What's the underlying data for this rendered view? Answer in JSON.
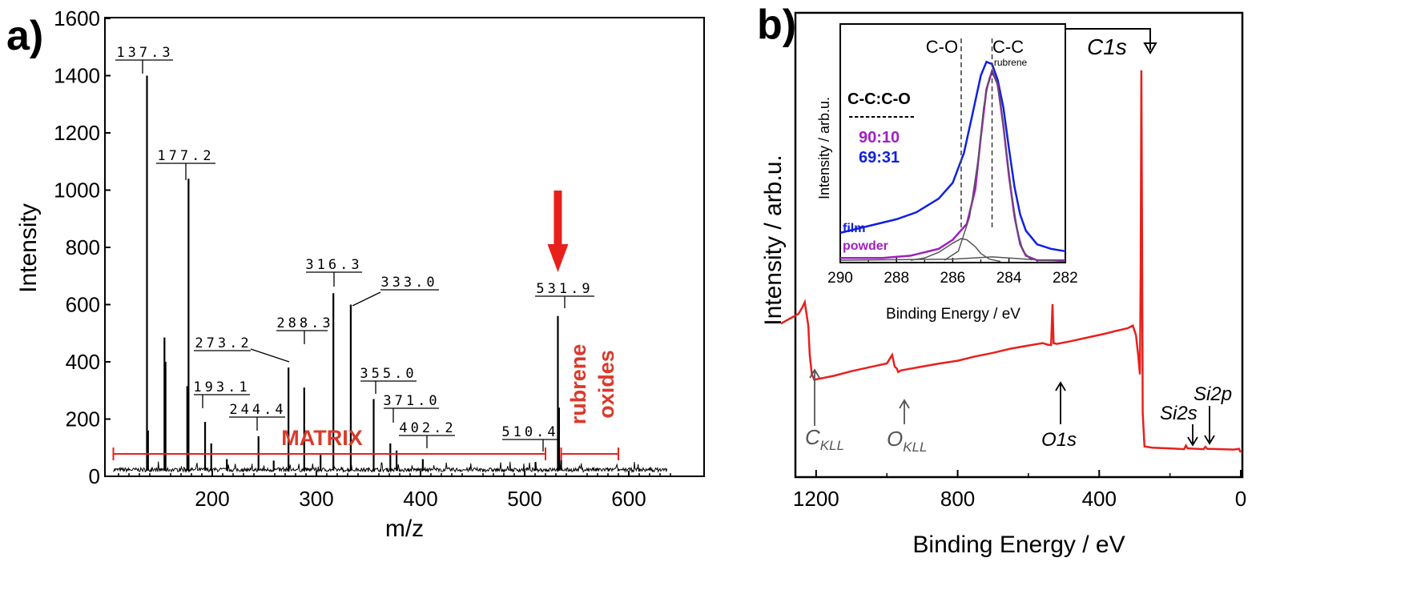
{
  "colors": {
    "axis": "#000000",
    "red": "#e8201c",
    "blue": "#1020e0",
    "purple": "#a020c0",
    "gray": "#555555",
    "annot_gray": "#555555",
    "matrix_red": "#d93a2b"
  },
  "panel_a": {
    "panel_label": "a)",
    "chart_data": {
      "type": "line",
      "title": "",
      "xlabel": "m/z",
      "ylabel": "Intensity",
      "xlim": [
        100,
        655
      ],
      "ylim": [
        0,
        1600
      ],
      "xticks": [
        200,
        300,
        400,
        500,
        600
      ],
      "yticks": [
        0,
        200,
        400,
        600,
        800,
        1000,
        1200,
        1400,
        1600
      ],
      "baseline": 20,
      "peaks": [
        {
          "x": 137.3,
          "y": 1400
        },
        {
          "x": 138.3,
          "y": 160
        },
        {
          "x": 154.1,
          "y": 485
        },
        {
          "x": 155.1,
          "y": 400
        },
        {
          "x": 176.0,
          "y": 315
        },
        {
          "x": 177.2,
          "y": 1040
        },
        {
          "x": 193.1,
          "y": 190
        },
        {
          "x": 199.0,
          "y": 115
        },
        {
          "x": 214.0,
          "y": 60
        },
        {
          "x": 244.4,
          "y": 140
        },
        {
          "x": 259.0,
          "y": 55
        },
        {
          "x": 273.2,
          "y": 380
        },
        {
          "x": 288.3,
          "y": 310
        },
        {
          "x": 304.0,
          "y": 75
        },
        {
          "x": 316.3,
          "y": 640
        },
        {
          "x": 333.0,
          "y": 600
        },
        {
          "x": 355.0,
          "y": 270
        },
        {
          "x": 371.0,
          "y": 115
        },
        {
          "x": 377.0,
          "y": 90
        },
        {
          "x": 402.2,
          "y": 60
        },
        {
          "x": 510.4,
          "y": 50
        },
        {
          "x": 531.9,
          "y": 560
        },
        {
          "x": 533.0,
          "y": 240
        },
        {
          "x": 535.0,
          "y": 75
        }
      ],
      "labeled_peaks": [
        {
          "text": "137.3",
          "x": 137.3
        },
        {
          "text": "177.2",
          "x": 177.2
        },
        {
          "text": "193.1",
          "x": 193.1
        },
        {
          "text": "244.4",
          "x": 244.4
        },
        {
          "text": "273.2",
          "x": 273.2
        },
        {
          "text": "288.3",
          "x": 288.3
        },
        {
          "text": "316.3",
          "x": 316.3
        },
        {
          "text": "333.0",
          "x": 333.0
        },
        {
          "text": "355.0",
          "x": 355.0
        },
        {
          "text": "371.0",
          "x": 371.0
        },
        {
          "text": "402.2",
          "x": 402.2
        },
        {
          "text": "510.4",
          "x": 510.4
        },
        {
          "text": "531.9",
          "x": 531.9
        }
      ],
      "annotations": {
        "matrix_label": "MATRIX",
        "matrix_range": [
          105,
          520
        ],
        "oxides_label_1": "rubrene",
        "oxides_label_2": "oxides",
        "oxides_range": [
          535,
          590
        ],
        "arrow_target_mz": 531.9
      }
    }
  },
  "panel_b": {
    "panel_label": "b)",
    "chart_data": {
      "type": "line",
      "xlabel": "Binding Energy / eV",
      "ylabel": "Intensity / arb.u.",
      "xlim": [
        1300,
        0
      ],
      "ylim": [
        0,
        100
      ],
      "xticks": [
        1200,
        800,
        400,
        0
      ],
      "series": [
        {
          "name": "survey",
          "color": "red",
          "points": [
            [
              1300,
              33
            ],
            [
              1270,
              34.5
            ],
            [
              1250,
              35.5
            ],
            [
              1240,
              37
            ],
            [
              1232,
              38.5
            ],
            [
              1228,
              36
            ],
            [
              1222,
              32.5
            ],
            [
              1218,
              25
            ],
            [
              1212,
              20
            ],
            [
              1205,
              18.6
            ],
            [
              1150,
              19.6
            ],
            [
              1100,
              20.8
            ],
            [
              1050,
              21.8
            ],
            [
              1000,
              22.8
            ],
            [
              985,
              25
            ],
            [
              978,
              22
            ],
            [
              972,
              21.5
            ],
            [
              968,
              20.6
            ],
            [
              960,
              21
            ],
            [
              900,
              22
            ],
            [
              850,
              22.8
            ],
            [
              800,
              23.5
            ],
            [
              750,
              24.6
            ],
            [
              700,
              25.5
            ],
            [
              650,
              26.6
            ],
            [
              600,
              27.4
            ],
            [
              560,
              28
            ],
            [
              545,
              27.6
            ],
            [
              536,
              27.5
            ],
            [
              532,
              38
            ],
            [
              529,
              28
            ],
            [
              520,
              27.8
            ],
            [
              480,
              28.5
            ],
            [
              420,
              29.7
            ],
            [
              380,
              30.5
            ],
            [
              350,
              31.2
            ],
            [
              320,
              31.8
            ],
            [
              305,
              32.5
            ],
            [
              296,
              30
            ],
            [
              290,
              25
            ],
            [
              285,
              20
            ],
            [
              283,
              45
            ],
            [
              281,
              98
            ],
            [
              279,
              60
            ],
            [
              277,
              10
            ],
            [
              272,
              1.5
            ],
            [
              250,
              1.2
            ],
            [
              200,
              1
            ],
            [
              160,
              0.8
            ],
            [
              155,
              1.7
            ],
            [
              150,
              1
            ],
            [
              105,
              0.8
            ],
            [
              100,
              1.4
            ],
            [
              95,
              0.9
            ],
            [
              20,
              0.7
            ],
            [
              5,
              0.9
            ],
            [
              2,
              0.3
            ],
            [
              0,
              0
            ]
          ]
        }
      ],
      "annotations": [
        {
          "label": "C",
          "sub": "KLL",
          "x": 1240
        },
        {
          "label": "O",
          "sub": "KLL",
          "x": 980
        },
        {
          "label": "O1s",
          "sub": "",
          "x": 532
        },
        {
          "label": "C1s",
          "sub": "",
          "x": 285
        },
        {
          "label": "Si2s",
          "sub": "",
          "x": 152
        },
        {
          "label": "Si2p",
          "sub": "",
          "x": 99
        }
      ],
      "inset": {
        "type": "line",
        "xlabel": "Binding Energy / eV",
        "ylabel": "Intensity / arb.u.",
        "xlim": [
          290,
          282
        ],
        "ylim": [
          0,
          1
        ],
        "xticks": [
          290,
          288,
          286,
          284,
          282
        ],
        "series": [
          {
            "name": "film",
            "color": "blue",
            "points": [
              [
                290,
                0.13
              ],
              [
                289,
                0.16
              ],
              [
                288,
                0.19
              ],
              [
                287.3,
                0.22
              ],
              [
                286.5,
                0.28
              ],
              [
                286,
                0.35
              ],
              [
                285.6,
                0.48
              ],
              [
                285.3,
                0.65
              ],
              [
                285.0,
                0.82
              ],
              [
                284.8,
                0.88
              ],
              [
                284.6,
                0.87
              ],
              [
                284.4,
                0.8
              ],
              [
                284.2,
                0.68
              ],
              [
                284.0,
                0.5
              ],
              [
                283.8,
                0.33
              ],
              [
                283.6,
                0.21
              ],
              [
                283.4,
                0.14
              ],
              [
                283.0,
                0.08
              ],
              [
                282.5,
                0.06
              ],
              [
                282,
                0.05
              ]
            ]
          },
          {
            "name": "powder",
            "color": "purple",
            "points": [
              [
                290,
                0.02
              ],
              [
                288.5,
                0.02
              ],
              [
                287.5,
                0.03
              ],
              [
                286.5,
                0.06
              ],
              [
                286,
                0.1
              ],
              [
                285.5,
                0.17
              ],
              [
                285.2,
                0.32
              ],
              [
                285.0,
                0.55
              ],
              [
                284.8,
                0.76
              ],
              [
                284.6,
                0.84
              ],
              [
                284.4,
                0.78
              ],
              [
                284.2,
                0.6
              ],
              [
                284.0,
                0.38
              ],
              [
                283.8,
                0.2
              ],
              [
                283.6,
                0.08
              ],
              [
                283.4,
                0.03
              ],
              [
                283.0,
                0.01
              ],
              [
                282,
                0.01
              ]
            ]
          },
          {
            "name": "C-C fit",
            "color": "gray",
            "points": [
              [
                286.3,
                0.01
              ],
              [
                285.8,
                0.05
              ],
              [
                285.4,
                0.2
              ],
              [
                285.1,
                0.45
              ],
              [
                284.9,
                0.68
              ],
              [
                284.7,
                0.81
              ],
              [
                284.6,
                0.83
              ],
              [
                284.45,
                0.8
              ],
              [
                284.3,
                0.7
              ],
              [
                284.1,
                0.5
              ],
              [
                283.9,
                0.3
              ],
              [
                283.7,
                0.14
              ],
              [
                283.5,
                0.05
              ],
              [
                283.2,
                0.01
              ]
            ]
          },
          {
            "name": "C-O fit",
            "color": "gray",
            "points": [
              [
                287.5,
                0.01
              ],
              [
                287,
                0.02
              ],
              [
                286.5,
                0.045
              ],
              [
                286.0,
                0.085
              ],
              [
                285.7,
                0.105
              ],
              [
                285.5,
                0.1
              ],
              [
                285.2,
                0.07
              ],
              [
                285.0,
                0.04
              ],
              [
                284.7,
                0.015
              ],
              [
                284.3,
                0.005
              ]
            ]
          },
          {
            "name": "background",
            "color": "gray",
            "points": [
              [
                290,
                0.01
              ],
              [
                286,
                0.015
              ],
              [
                284.6,
                0.025
              ],
              [
                283.4,
                0.015
              ],
              [
                282,
                0.005
              ]
            ]
          }
        ],
        "dashed_lines": [
          {
            "x": 285.7,
            "label": "C-O"
          },
          {
            "x": 284.6,
            "label": "C-C",
            "sublabel": "rubrene"
          }
        ],
        "legend": [
          {
            "text": "film",
            "color": "blue"
          },
          {
            "text": "powder",
            "color": "purple"
          }
        ],
        "ratio_header": "C-C:C-O",
        "ratio_divider": "------------",
        "ratios": [
          {
            "text": "90:10",
            "color": "purple"
          },
          {
            "text": "69:31",
            "color": "blue"
          }
        ]
      }
    }
  }
}
